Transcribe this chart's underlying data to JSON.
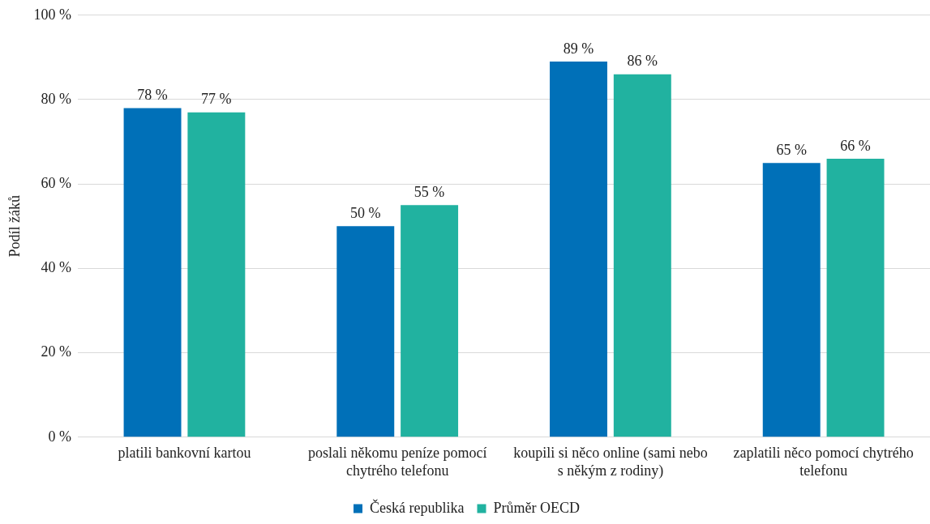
{
  "chart_data": {
    "type": "bar",
    "ylabel": "Podíl žáků",
    "categories": [
      "platili bankovní kartou",
      "poslali někomu peníze pomocí chytrého telefonu",
      "koupili si něco online (sami nebo s někým z rodiny)",
      "zaplatili něco pomocí chytrého telefonu"
    ],
    "series": [
      {
        "name": "Česká republika",
        "color": "#0070b8",
        "values": [
          78,
          50,
          89,
          65
        ],
        "value_labels": [
          "78 %",
          "50 %",
          "89 %",
          "65 %"
        ]
      },
      {
        "name": "Průměr OECD",
        "color": "#21b2a0",
        "values": [
          77,
          55,
          86,
          66
        ],
        "value_labels": [
          "77 %",
          "55 %",
          "86 %",
          "66 %"
        ]
      }
    ],
    "ylim": [
      0,
      100
    ],
    "yticks": [
      {
        "value": 0,
        "label": "0 %"
      },
      {
        "value": 20,
        "label": "20 %"
      },
      {
        "value": 40,
        "label": "40 %"
      },
      {
        "value": 60,
        "label": "60 %"
      },
      {
        "value": 80,
        "label": "80 %"
      },
      {
        "value": 100,
        "label": "100 %"
      }
    ],
    "grid": "y",
    "legend": "bottom"
  }
}
